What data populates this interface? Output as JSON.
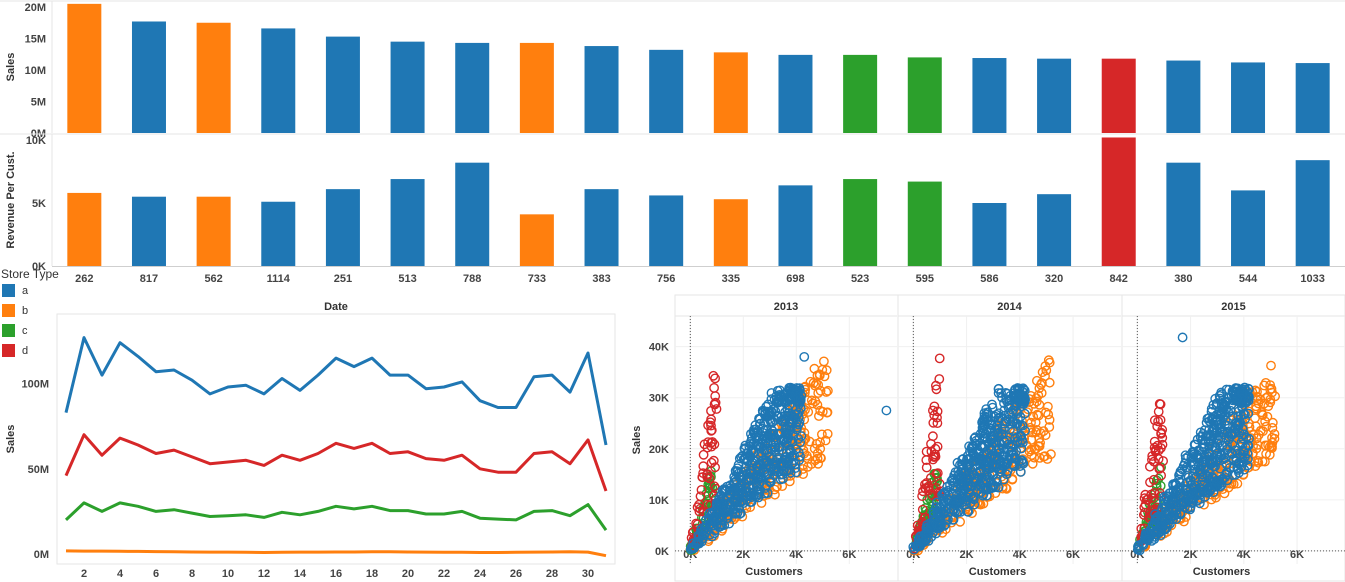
{
  "colors": {
    "a": "#1f77b4",
    "b": "#ff7f0e",
    "c": "#2ca02c",
    "d": "#d62728"
  },
  "legend": {
    "title": "Store Type",
    "items": [
      {
        "key": "a",
        "label": "a"
      },
      {
        "key": "b",
        "label": "b"
      },
      {
        "key": "c",
        "label": "c"
      },
      {
        "key": "d",
        "label": "d"
      }
    ]
  },
  "chart_data": [
    {
      "type": "bar",
      "ylabel": "Sales",
      "ylim": [
        0,
        20000000
      ],
      "yticks": [
        {
          "v": 0,
          "label": "0M"
        },
        {
          "v": 5000000,
          "label": "5M"
        },
        {
          "v": 10000000,
          "label": "10M"
        },
        {
          "v": 15000000,
          "label": "15M"
        },
        {
          "v": 20000000,
          "label": "20M"
        }
      ],
      "categories": [
        "262",
        "817",
        "562",
        "1114",
        "251",
        "513",
        "788",
        "733",
        "383",
        "756",
        "335",
        "698",
        "523",
        "595",
        "586",
        "320",
        "842",
        "380",
        "544",
        "1033"
      ],
      "store_type": [
        "b",
        "a",
        "b",
        "a",
        "a",
        "a",
        "a",
        "b",
        "a",
        "a",
        "b",
        "a",
        "c",
        "c",
        "a",
        "a",
        "d",
        "a",
        "a",
        "a"
      ],
      "values": [
        20500000,
        17700000,
        17500000,
        16600000,
        15300000,
        14500000,
        14300000,
        14300000,
        13800000,
        13200000,
        12800000,
        12400000,
        12400000,
        12000000,
        11900000,
        11800000,
        11800000,
        11500000,
        11200000,
        11100000
      ]
    },
    {
      "type": "bar",
      "ylabel": "Revenue Per Cust.",
      "ylim": [
        0,
        10000
      ],
      "yticks": [
        {
          "v": 0,
          "label": "0K"
        },
        {
          "v": 5000,
          "label": "5K"
        },
        {
          "v": 10000,
          "label": "10K"
        }
      ],
      "categories": [
        "262",
        "817",
        "562",
        "1114",
        "251",
        "513",
        "788",
        "733",
        "383",
        "756",
        "335",
        "698",
        "523",
        "595",
        "586",
        "320",
        "842",
        "380",
        "544",
        "1033"
      ],
      "store_type": [
        "b",
        "a",
        "b",
        "a",
        "a",
        "a",
        "a",
        "b",
        "a",
        "a",
        "b",
        "a",
        "c",
        "c",
        "a",
        "a",
        "d",
        "a",
        "a",
        "a"
      ],
      "values": [
        5800,
        5500,
        5500,
        5100,
        6100,
        6900,
        8200,
        4100,
        6100,
        5600,
        5300,
        6400,
        6900,
        6700,
        5000,
        5700,
        10200,
        8200,
        6000,
        8400
      ]
    },
    {
      "type": "line",
      "title": "Date",
      "ylabel": "Sales",
      "xlim": [
        0.5,
        31.5
      ],
      "ylim": [
        0,
        135000000
      ],
      "xticks": [
        2,
        4,
        6,
        8,
        10,
        12,
        14,
        16,
        18,
        20,
        22,
        24,
        26,
        28,
        30
      ],
      "yticks": [
        {
          "v": 0,
          "label": "0M"
        },
        {
          "v": 50000000,
          "label": "50M"
        },
        {
          "v": 100000000,
          "label": "100M"
        }
      ],
      "x": [
        1,
        2,
        3,
        4,
        5,
        6,
        7,
        8,
        9,
        10,
        11,
        12,
        13,
        14,
        15,
        16,
        17,
        18,
        19,
        20,
        21,
        22,
        23,
        24,
        25,
        26,
        27,
        28,
        29,
        30,
        31
      ],
      "series": [
        {
          "key": "a",
          "values": [
            83000000,
            127000000,
            105000000,
            124000000,
            116000000,
            107000000,
            108000000,
            102000000,
            94000000,
            98000000,
            99000000,
            94000000,
            103000000,
            96000000,
            105000000,
            115000000,
            110000000,
            115000000,
            105000000,
            105000000,
            97000000,
            98000000,
            101000000,
            90000000,
            86000000,
            86000000,
            104000000,
            105000000,
            95000000,
            118000000,
            64000000
          ]
        },
        {
          "key": "d",
          "values": [
            46000000,
            70000000,
            58000000,
            68000000,
            64000000,
            59000000,
            61000000,
            57000000,
            53000000,
            54000000,
            55000000,
            52000000,
            58000000,
            55000000,
            59000000,
            65000000,
            62000000,
            65000000,
            59000000,
            60000000,
            56000000,
            55000000,
            58000000,
            50000000,
            48000000,
            48000000,
            59000000,
            60000000,
            53000000,
            67000000,
            37000000
          ]
        },
        {
          "key": "c",
          "values": [
            20000000,
            30000000,
            25000000,
            30000000,
            28000000,
            25000000,
            26000000,
            24000000,
            22000000,
            22500000,
            23000000,
            21500000,
            24500000,
            23000000,
            25000000,
            28000000,
            26500000,
            28000000,
            25500000,
            25500000,
            23500000,
            23500000,
            25000000,
            21000000,
            20500000,
            20000000,
            25000000,
            25500000,
            22500000,
            29000000,
            14000000
          ]
        },
        {
          "key": "b",
          "values": [
            1800000,
            1700000,
            1700000,
            1600000,
            1500000,
            1400000,
            1300000,
            1200000,
            1100000,
            1100000,
            1000000,
            900000,
            1000000,
            1100000,
            1100000,
            1200000,
            1200000,
            1300000,
            1300000,
            1200000,
            1100000,
            1000000,
            1000000,
            900000,
            900000,
            1000000,
            1100000,
            1200000,
            1300000,
            1100000,
            -1000000
          ]
        }
      ]
    },
    {
      "type": "scatter",
      "ylabel": "Sales",
      "xlabel": "Customers",
      "xlim": [
        -200,
        7800
      ],
      "ylim": [
        -1000,
        46000
      ],
      "xticks": [
        {
          "v": 0,
          "label": "0K"
        },
        {
          "v": 2000,
          "label": "2K"
        },
        {
          "v": 4000,
          "label": "4K"
        },
        {
          "v": 6000,
          "label": "6K"
        }
      ],
      "yticks": [
        {
          "v": 0,
          "label": "0K"
        },
        {
          "v": 10000,
          "label": "10K"
        },
        {
          "v": 20000,
          "label": "20K"
        },
        {
          "v": 30000,
          "label": "30K"
        },
        {
          "v": 40000,
          "label": "40K"
        }
      ],
      "panels": [
        {
          "title": "2013",
          "outliers_a": [
            [
              7400,
              27500
            ],
            [
              4300,
              38000
            ]
          ]
        },
        {
          "title": "2014",
          "outliers_a": [
            [
              2000,
              10000
            ],
            [
              3100,
              12500
            ]
          ]
        },
        {
          "title": "2015",
          "outliers_a": [
            [
              1700,
              41800
            ],
            [
              2000,
              10000
            ]
          ]
        }
      ],
      "store_shapes": {
        "a": {
          "slope_min": 4.0,
          "slope_max": 10.0,
          "xmax": 4200,
          "ymax": 32000
        },
        "b": {
          "slope_min": 3.5,
          "slope_max": 7.5,
          "xmax": 5200,
          "ymax": 38000
        },
        "c": {
          "slope_min": 10.0,
          "slope_max": 20.0,
          "xmax": 900,
          "ymax": 31000
        },
        "d": {
          "slope_min": 10.0,
          "slope_max": 40.0,
          "xmax": 1000,
          "ymax": 38000
        }
      }
    }
  ]
}
